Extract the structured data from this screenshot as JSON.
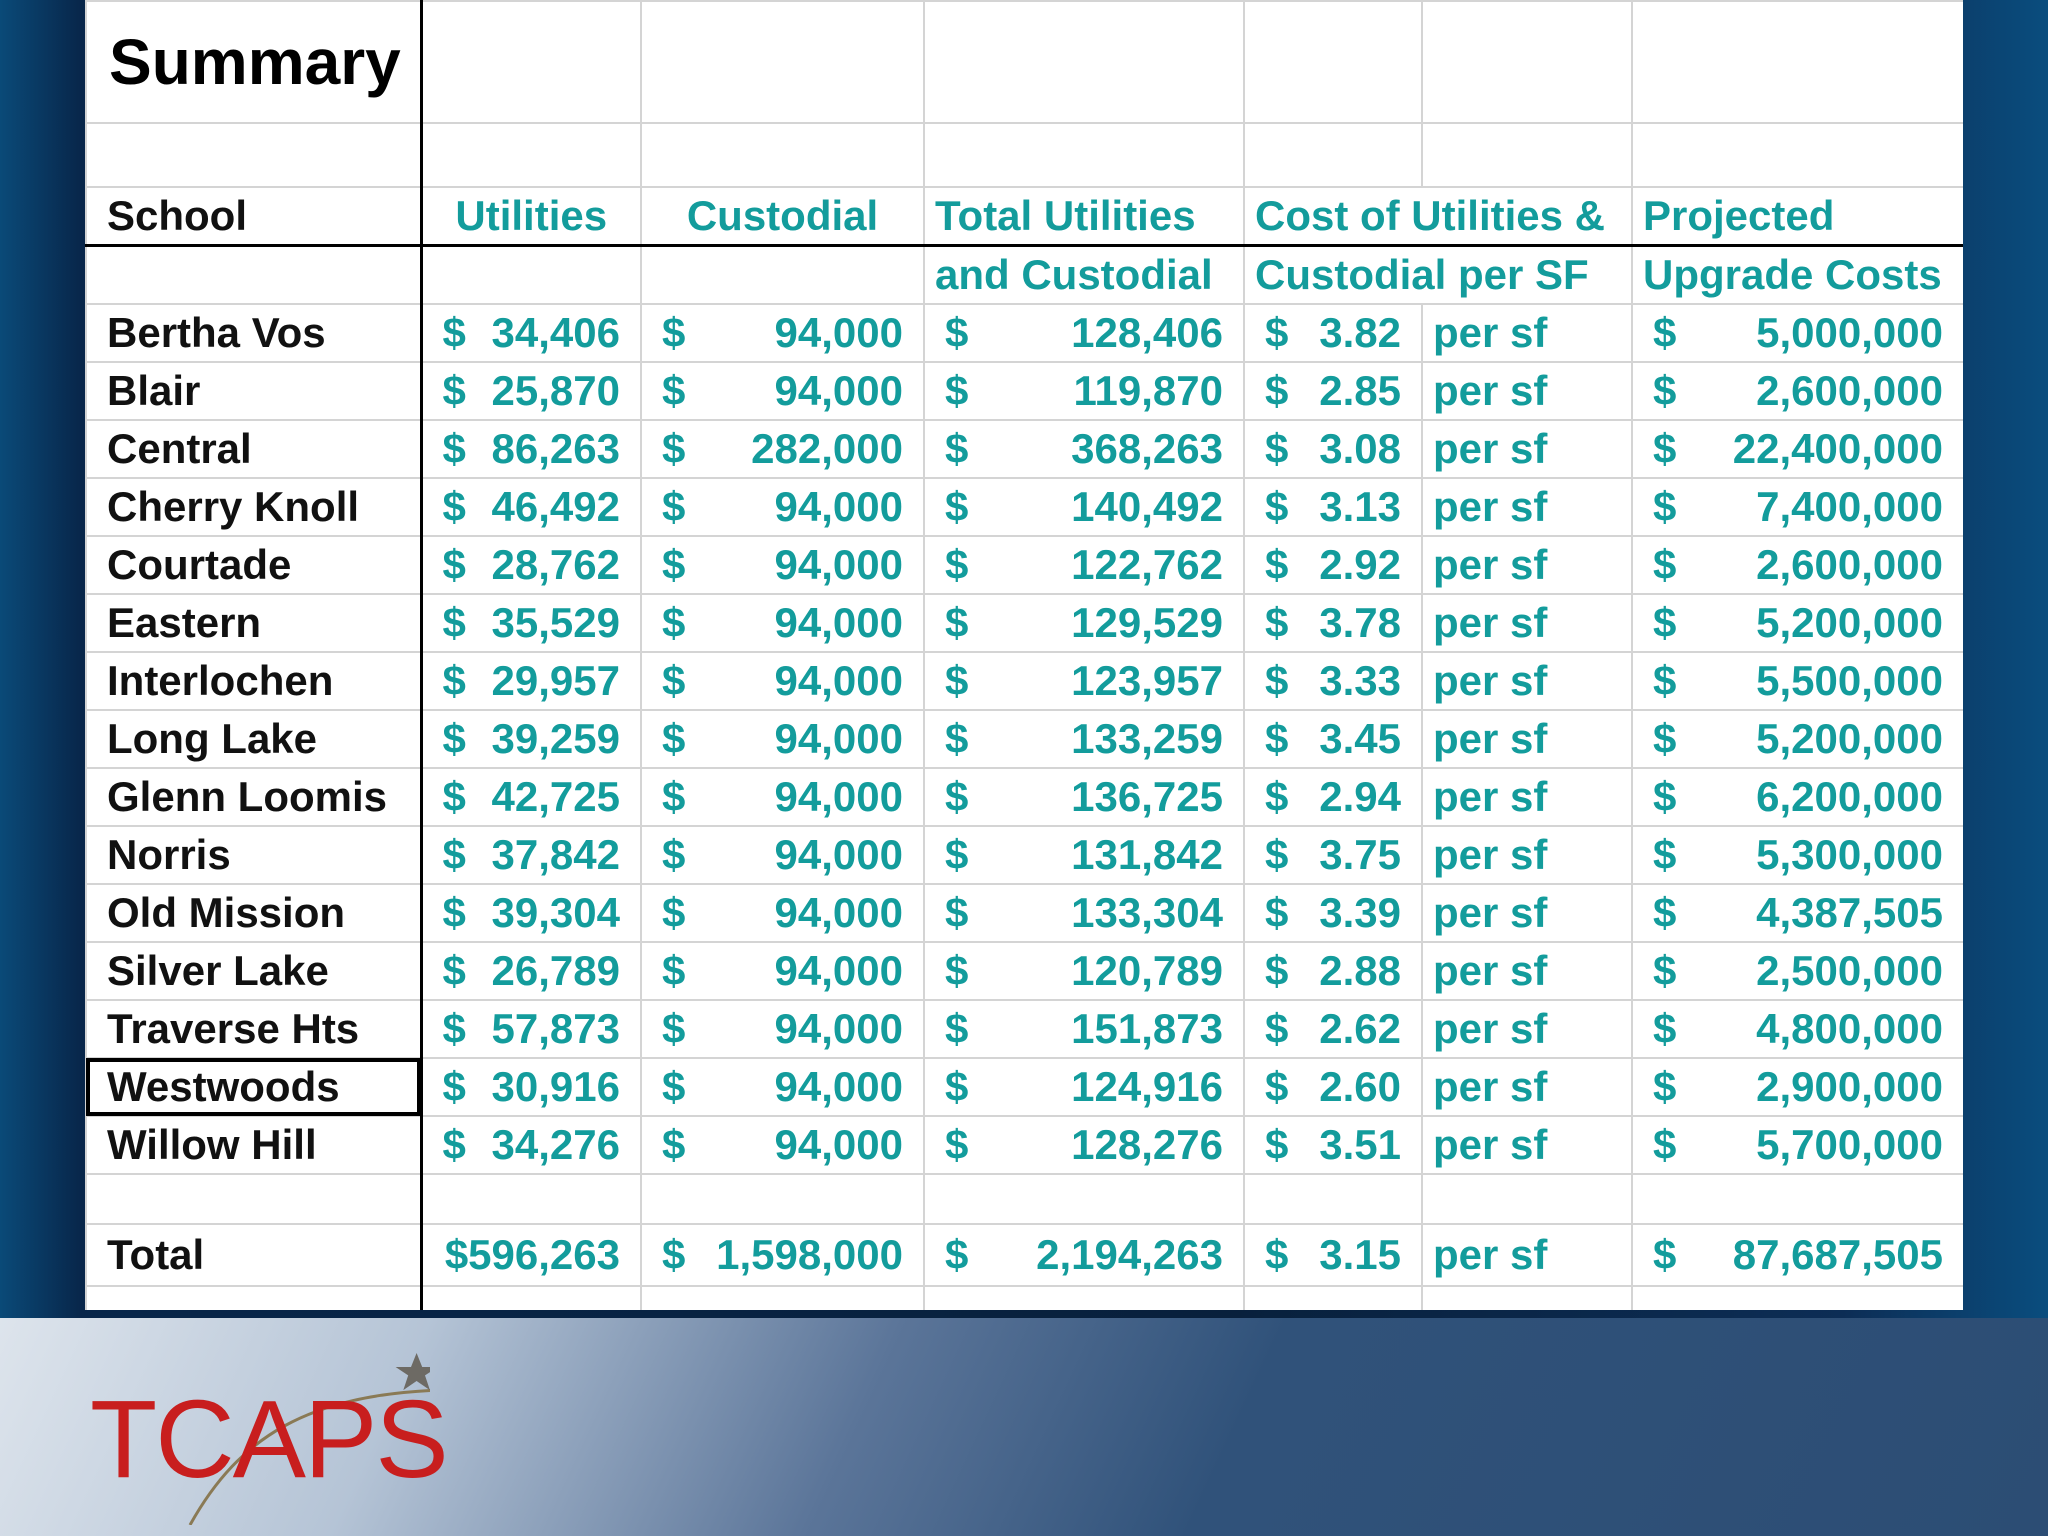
{
  "sheet": {
    "title": "Summary",
    "headers": {
      "school": "School",
      "utilities": "Utilities",
      "custodial": "Custodial",
      "total_line1": "Total Utilities",
      "total_line2": "and Custodial",
      "cost_line1": "Cost of Utilities &",
      "cost_line2": "Custodial per SF",
      "proj_line1": "Projected",
      "proj_line2": "Upgrade Costs"
    },
    "currency": "$",
    "per_sf": "per sf",
    "rows": [
      {
        "school": "Bertha Vos",
        "utilities": "34,406",
        "custodial": "94,000",
        "total": "128,406",
        "cost": "3.82",
        "projected": "5,000,000"
      },
      {
        "school": "Blair",
        "utilities": "25,870",
        "custodial": "94,000",
        "total": "119,870",
        "cost": "2.85",
        "projected": "2,600,000"
      },
      {
        "school": "Central",
        "utilities": "86,263",
        "custodial": "282,000",
        "total": "368,263",
        "cost": "3.08",
        "projected": "22,400,000"
      },
      {
        "school": "Cherry Knoll",
        "utilities": "46,492",
        "custodial": "94,000",
        "total": "140,492",
        "cost": "3.13",
        "projected": "7,400,000"
      },
      {
        "school": "Courtade",
        "utilities": "28,762",
        "custodial": "94,000",
        "total": "122,762",
        "cost": "2.92",
        "projected": "2,600,000"
      },
      {
        "school": "Eastern",
        "utilities": "35,529",
        "custodial": "94,000",
        "total": "129,529",
        "cost": "3.78",
        "projected": "5,200,000"
      },
      {
        "school": "Interlochen",
        "utilities": "29,957",
        "custodial": "94,000",
        "total": "123,957",
        "cost": "3.33",
        "projected": "5,500,000"
      },
      {
        "school": "Long Lake",
        "utilities": "39,259",
        "custodial": "94,000",
        "total": "133,259",
        "cost": "3.45",
        "projected": "5,200,000"
      },
      {
        "school": "Glenn Loomis",
        "utilities": "42,725",
        "custodial": "94,000",
        "total": "136,725",
        "cost": "2.94",
        "projected": "6,200,000"
      },
      {
        "school": "Norris",
        "utilities": "37,842",
        "custodial": "94,000",
        "total": "131,842",
        "cost": "3.75",
        "projected": "5,300,000"
      },
      {
        "school": "Old Mission",
        "utilities": "39,304",
        "custodial": "94,000",
        "total": "133,304",
        "cost": "3.39",
        "projected": "4,387,505"
      },
      {
        "school": "Silver Lake",
        "utilities": "26,789",
        "custodial": "94,000",
        "total": "120,789",
        "cost": "2.88",
        "projected": "2,500,000"
      },
      {
        "school": "Traverse Hts",
        "utilities": "57,873",
        "custodial": "94,000",
        "total": "151,873",
        "cost": "2.62",
        "projected": "4,800,000"
      },
      {
        "school": "Westwoods",
        "utilities": "30,916",
        "custodial": "94,000",
        "total": "124,916",
        "cost": "2.60",
        "projected": "2,900,000",
        "selected": true
      },
      {
        "school": "Willow Hill",
        "utilities": "34,276",
        "custodial": "94,000",
        "total": "128,276",
        "cost": "3.51",
        "projected": "5,700,000"
      }
    ],
    "total": {
      "label": "Total",
      "utilities": "$596,263",
      "custodial": "1,598,000",
      "total": "2,194,263",
      "cost": "3.15",
      "projected": "87,687,505"
    }
  },
  "logo": {
    "text": "TCAPS"
  },
  "colors": {
    "value_text": "#139c9c",
    "name_text": "#111111",
    "logo": "#c81e1e"
  }
}
